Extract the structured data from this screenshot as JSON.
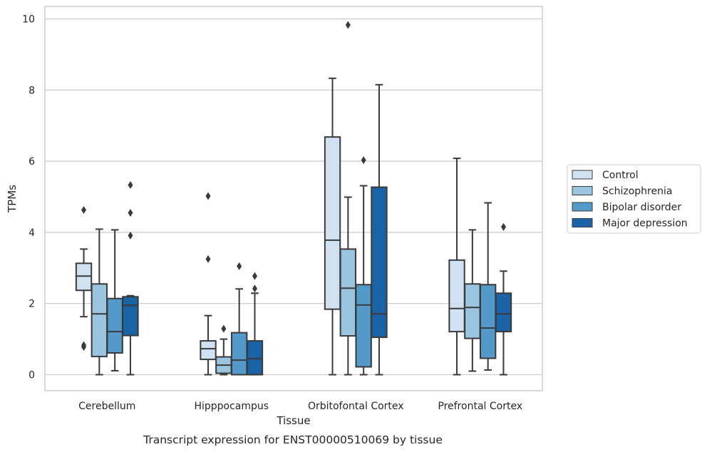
{
  "chart_data": {
    "type": "boxplot",
    "title": "Transcript expression for ENST00000510069 by tissue",
    "xlabel": "Tissue",
    "ylabel": "TPMs",
    "ylim": [
      -0.45,
      10.35
    ],
    "yticks": [
      0,
      2,
      4,
      6,
      8,
      10
    ],
    "grid": "horizontal",
    "legend_position": "right",
    "categories": [
      "Cerebellum",
      "Hipppocampus",
      "Orbitofontal Cortex",
      "Prefrontal Cortex"
    ],
    "series": [
      {
        "name": "Control",
        "color": "#d0e2f2",
        "boxes": [
          {
            "whislo": 1.63,
            "q1": 2.37,
            "med": 2.77,
            "q3": 3.13,
            "whishi": 3.53,
            "fliers": [
              4.63,
              0.83,
              0.78
            ]
          },
          {
            "whislo": 0.0,
            "q1": 0.43,
            "med": 0.73,
            "q3": 0.95,
            "whishi": 1.66,
            "fliers": [
              5.02,
              3.25
            ]
          },
          {
            "whislo": 0.0,
            "q1": 1.84,
            "med": 3.78,
            "q3": 6.68,
            "whishi": 8.33,
            "fliers": []
          },
          {
            "whislo": 0.0,
            "q1": 1.21,
            "med": 1.86,
            "q3": 3.22,
            "whishi": 6.08,
            "fliers": []
          }
        ]
      },
      {
        "name": "Schizophrenia",
        "color": "#9ac4df",
        "boxes": [
          {
            "whislo": 0.0,
            "q1": 0.51,
            "med": 1.71,
            "q3": 2.55,
            "whishi": 4.09,
            "fliers": []
          },
          {
            "whislo": 0.0,
            "q1": 0.04,
            "med": 0.27,
            "q3": 0.5,
            "whishi": 1.0,
            "fliers": [
              1.29
            ]
          },
          {
            "whislo": 0.0,
            "q1": 1.09,
            "med": 2.43,
            "q3": 3.53,
            "whishi": 4.99,
            "fliers": [
              9.83
            ]
          },
          {
            "whislo": 0.1,
            "q1": 1.02,
            "med": 1.89,
            "q3": 2.55,
            "whishi": 4.07,
            "fliers": []
          }
        ]
      },
      {
        "name": "Bipolar disorder",
        "color": "#5399c9",
        "boxes": [
          {
            "whislo": 0.11,
            "q1": 0.61,
            "med": 1.21,
            "q3": 2.14,
            "whishi": 4.07,
            "fliers": []
          },
          {
            "whislo": 0.0,
            "q1": 0.0,
            "med": 0.41,
            "q3": 1.18,
            "whishi": 2.41,
            "fliers": [
              3.05
            ]
          },
          {
            "whislo": 0.0,
            "q1": 0.22,
            "med": 1.96,
            "q3": 2.53,
            "whishi": 5.31,
            "fliers": [
              6.03
            ]
          },
          {
            "whislo": 0.13,
            "q1": 0.46,
            "med": 1.31,
            "q3": 2.53,
            "whishi": 4.83,
            "fliers": []
          }
        ]
      },
      {
        "name": "Major depression",
        "color": "#1b63a7",
        "boxes": [
          {
            "whislo": 0.0,
            "q1": 1.1,
            "med": 1.95,
            "q3": 2.19,
            "whishi": 2.22,
            "fliers": [
              5.33,
              4.55,
              3.91
            ]
          },
          {
            "whislo": 0.0,
            "q1": 0.0,
            "med": 0.45,
            "q3": 0.95,
            "whishi": 2.29,
            "fliers": [
              2.77,
              2.42
            ]
          },
          {
            "whislo": 0.0,
            "q1": 1.05,
            "med": 1.71,
            "q3": 5.27,
            "whishi": 8.15,
            "fliers": []
          },
          {
            "whislo": 0.0,
            "q1": 1.21,
            "med": 1.71,
            "q3": 2.29,
            "whishi": 2.91,
            "fliers": [
              4.15
            ]
          }
        ]
      }
    ]
  }
}
